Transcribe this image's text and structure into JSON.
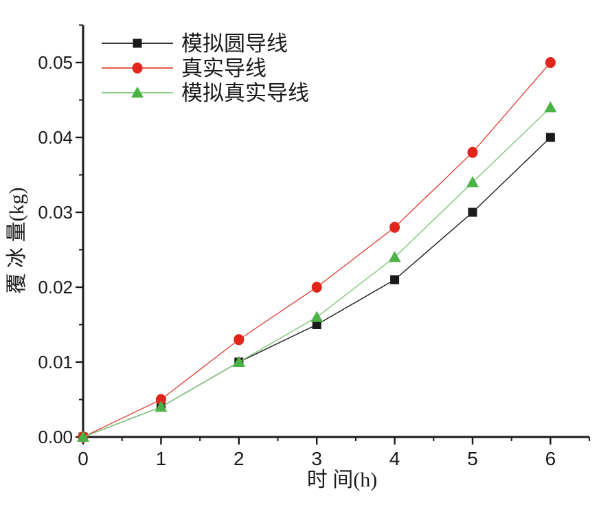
{
  "figure": {
    "background": "#ffffff"
  },
  "colors": {
    "axis": "#1a1a1a",
    "text": "#1a1a1a",
    "background": "#ffffff"
  },
  "chart_data": {
    "type": "line",
    "title": "",
    "xlabel": "时 间(h)",
    "ylabel": "覆 冰 量(kg)",
    "x": [
      0,
      1,
      2,
      3,
      4,
      5,
      6
    ],
    "xlim": [
      0,
      6.5
    ],
    "ylim": [
      0,
      0.055
    ],
    "x_major_ticks": [
      0,
      1,
      2,
      3,
      4,
      5,
      6
    ],
    "x_tick_labels": [
      "0",
      "1",
      "2",
      "3",
      "4",
      "5",
      "6"
    ],
    "x_minor_ticks": [
      0.5,
      1.5,
      2.5,
      3.5,
      4.5,
      5.5,
      6.5
    ],
    "y_major_ticks": [
      0,
      0.01,
      0.02,
      0.03,
      0.04,
      0.05
    ],
    "y_tick_labels": [
      "0.00",
      "0.01",
      "0.02",
      "0.03",
      "0.04",
      "0.05"
    ],
    "y_minor_ticks": [
      0.005,
      0.015,
      0.025,
      0.035,
      0.045,
      0.055
    ],
    "grid": false,
    "legend_position": "top-left-inside",
    "series": [
      {
        "id": "simulated-round-conductor",
        "name": "模拟圆导线",
        "marker": "square",
        "marker_color": "#1a1a1a",
        "line_color": "#1a1a1a",
        "values": [
          0,
          0.004,
          0.01,
          0.015,
          0.021,
          0.03,
          0.04
        ]
      },
      {
        "id": "real-conductor",
        "name": "真实导线",
        "marker": "circle",
        "marker_color": "#e1251b",
        "line_color": "#e2463a",
        "values": [
          0,
          0.005,
          0.013,
          0.02,
          0.028,
          0.038,
          0.05
        ]
      },
      {
        "id": "simulated-real-conductor",
        "name": "模拟真实导线",
        "marker": "triangle",
        "marker_color": "#4bb345",
        "line_color": "#7cc878",
        "values": [
          0,
          0.004,
          0.01,
          0.016,
          0.024,
          0.034,
          0.044
        ]
      }
    ]
  }
}
